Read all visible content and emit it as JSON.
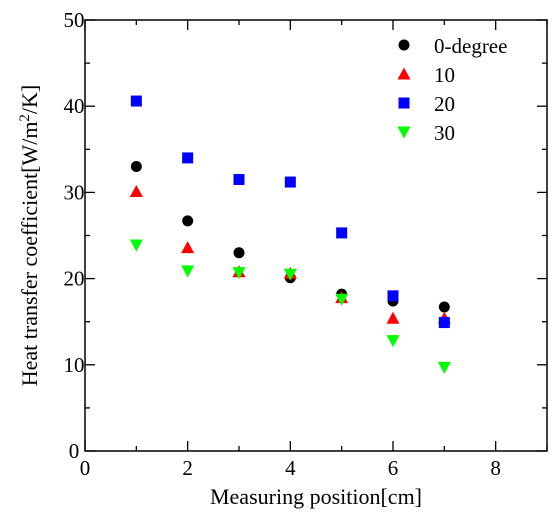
{
  "chart_data": {
    "type": "scatter",
    "xlabel": "Measuring position[cm]",
    "ylabel": "Heat transfer coefficient[W/m²/K]",
    "ylabel_parts": {
      "before": "Heat transfer coefficient[W/m",
      "sup": "2",
      "after": "/K]"
    },
    "xlim": [
      0,
      9
    ],
    "ylim": [
      0,
      50
    ],
    "x_ticks": [
      0,
      2,
      4,
      6,
      8
    ],
    "x_tick_labels": [
      "0",
      "2",
      "4",
      "6",
      "8"
    ],
    "y_ticks": [
      0,
      10,
      20,
      30,
      40,
      50
    ],
    "y_tick_labels": [
      "0",
      "10",
      "20",
      "30",
      "40",
      "50"
    ],
    "grid": false,
    "legend_position": "top-right",
    "series": [
      {
        "name": "0-degree",
        "marker": "circle",
        "color": "#000000",
        "x": [
          1,
          2,
          3,
          4,
          5,
          6,
          7
        ],
        "y": [
          33.0,
          26.7,
          23.0,
          20.1,
          18.2,
          17.4,
          16.7
        ]
      },
      {
        "name": "10",
        "marker": "triangle-up",
        "color": "#ff0000",
        "x": [
          1,
          2,
          3,
          4,
          5,
          6,
          7
        ],
        "y": [
          30.1,
          23.6,
          20.8,
          20.6,
          17.8,
          15.4,
          15.4
        ]
      },
      {
        "name": "20",
        "marker": "square",
        "color": "#0000ff",
        "x": [
          1,
          2,
          3,
          4,
          5,
          6,
          7
        ],
        "y": [
          40.6,
          34.0,
          31.5,
          31.2,
          25.3,
          18.0,
          14.9
        ]
      },
      {
        "name": "30",
        "marker": "triangle-down",
        "color": "#00ff00",
        "x": [
          1,
          2,
          3,
          4,
          5,
          6,
          7
        ],
        "y": [
          23.9,
          20.9,
          20.7,
          20.5,
          17.6,
          12.8,
          9.7
        ]
      }
    ]
  }
}
